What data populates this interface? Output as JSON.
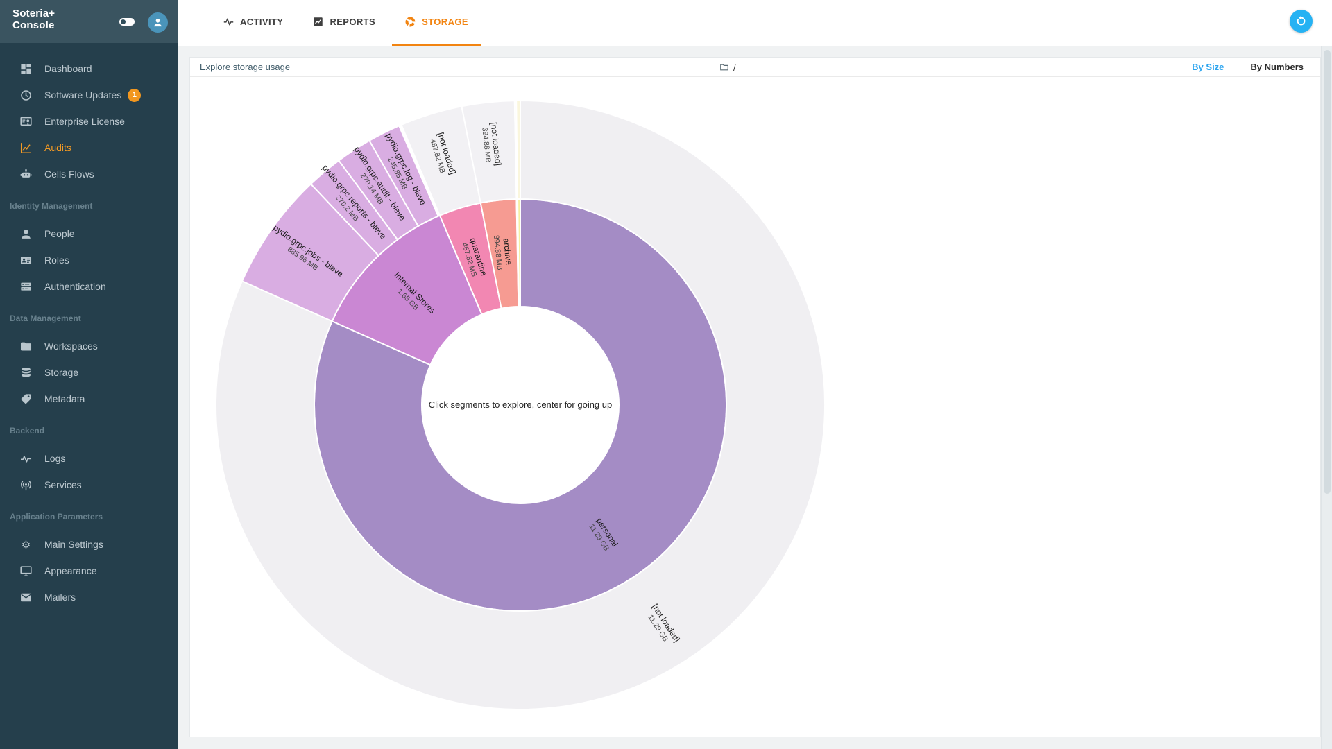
{
  "app": {
    "title_line1": "Soteria+",
    "title_line2": "Console"
  },
  "sidebar": {
    "sections": [
      {
        "label": "",
        "items": [
          {
            "label": "Dashboard",
            "icon": "dashboard-icon"
          },
          {
            "label": "Software Updates",
            "icon": "update-icon",
            "badge": "1"
          },
          {
            "label": "Enterprise License",
            "icon": "license-icon"
          },
          {
            "label": "Audits",
            "icon": "audits-icon",
            "active": true
          },
          {
            "label": "Cells Flows",
            "icon": "robot-icon"
          }
        ]
      },
      {
        "label": "Identity Management",
        "items": [
          {
            "label": "People",
            "icon": "person-icon"
          },
          {
            "label": "Roles",
            "icon": "roles-icon"
          },
          {
            "label": "Authentication",
            "icon": "authentication-icon"
          }
        ]
      },
      {
        "label": "Data Management",
        "items": [
          {
            "label": "Workspaces",
            "icon": "folder-icon"
          },
          {
            "label": "Storage",
            "icon": "database-icon"
          },
          {
            "label": "Metadata",
            "icon": "tag-icon"
          }
        ]
      },
      {
        "label": "Backend",
        "items": [
          {
            "label": "Logs",
            "icon": "pulse-icon"
          },
          {
            "label": "Services",
            "icon": "antenna-icon"
          }
        ]
      },
      {
        "label": "Application Parameters",
        "items": [
          {
            "label": "Main Settings",
            "icon": "gear-icon"
          },
          {
            "label": "Appearance",
            "icon": "monitor-icon"
          },
          {
            "label": "Mailers",
            "icon": "mail-icon"
          }
        ]
      }
    ]
  },
  "tabs": [
    {
      "label": "ACTIVITY",
      "icon": "activity-icon",
      "active": false
    },
    {
      "label": "REPORTS",
      "icon": "reports-icon",
      "active": false
    },
    {
      "label": "STORAGE",
      "icon": "donut-icon",
      "active": true
    }
  ],
  "toolbar": {
    "title": "Explore storage usage",
    "breadcrumb": "/",
    "by_size": "By Size",
    "by_numbers": "By Numbers"
  },
  "colors": {
    "accent_orange": "#f28411",
    "accent_blue": "#2aa4ef",
    "sidebar_orange": "#f59b23",
    "fab_blue": "#25b2f3"
  },
  "chart_data": {
    "type": "sunburst",
    "title": "Explore storage usage",
    "center_text": "Click segments to explore, center for going up",
    "unit": "MB",
    "rings": [
      {
        "name": "inner",
        "segments": [
          {
            "label": "personal",
            "size_label": "11.29 GB",
            "value": 11561,
            "color": "#a48cc5"
          },
          {
            "label": "Internal Stores",
            "size_label": "1.65 GB",
            "value": 1690,
            "color": "#ca87d3"
          },
          {
            "label": "quarantine",
            "size_label": "467.82 MB",
            "value": 467.82,
            "color": "#f287b2"
          },
          {
            "label": "archive",
            "size_label": "394.88 MB",
            "value": 394.88,
            "color": "#f69b92"
          },
          {
            "label": "",
            "size_label": "",
            "value": 12,
            "color": "#f8b26e"
          },
          {
            "label": "",
            "size_label": "",
            "value": 30,
            "color": "#f6f0a3"
          }
        ]
      },
      {
        "name": "outer",
        "segments": [
          {
            "label": "[not loaded]",
            "size_label": "11.29 GB",
            "value": 11561,
            "color": "#f0eff2"
          },
          {
            "label": "pydio.grpc.jobs - bleve",
            "size_label": "885.96 MB",
            "value": 885.96,
            "color": "#d9ade2"
          },
          {
            "label": "pydio.grpc.reports - bleve",
            "size_label": "270.2 MB",
            "value": 270.2,
            "color": "#d9ade2"
          },
          {
            "label": "pydio.grpc.audit - bleve",
            "size_label": "270.14 MB",
            "value": 270.14,
            "color": "#d9ade2"
          },
          {
            "label": "pydio.grpc.log - bleve",
            "size_label": "245.85 MB",
            "value": 245.85,
            "color": "#d9ade2"
          },
          {
            "label": "",
            "size_label": "",
            "value": 17.85,
            "color": "#ffffff"
          },
          {
            "label": "[not loaded]",
            "size_label": "467.82 MB",
            "value": 467.82,
            "color": "#f2f1f4"
          },
          {
            "label": "[not loaded]",
            "size_label": "394.88 MB",
            "value": 394.88,
            "color": "#f2f1f4"
          },
          {
            "label": "",
            "size_label": "",
            "value": 12,
            "color": "#fdfcf6"
          },
          {
            "label": "",
            "size_label": "",
            "value": 30,
            "color": "#faf6dd"
          }
        ]
      }
    ]
  }
}
